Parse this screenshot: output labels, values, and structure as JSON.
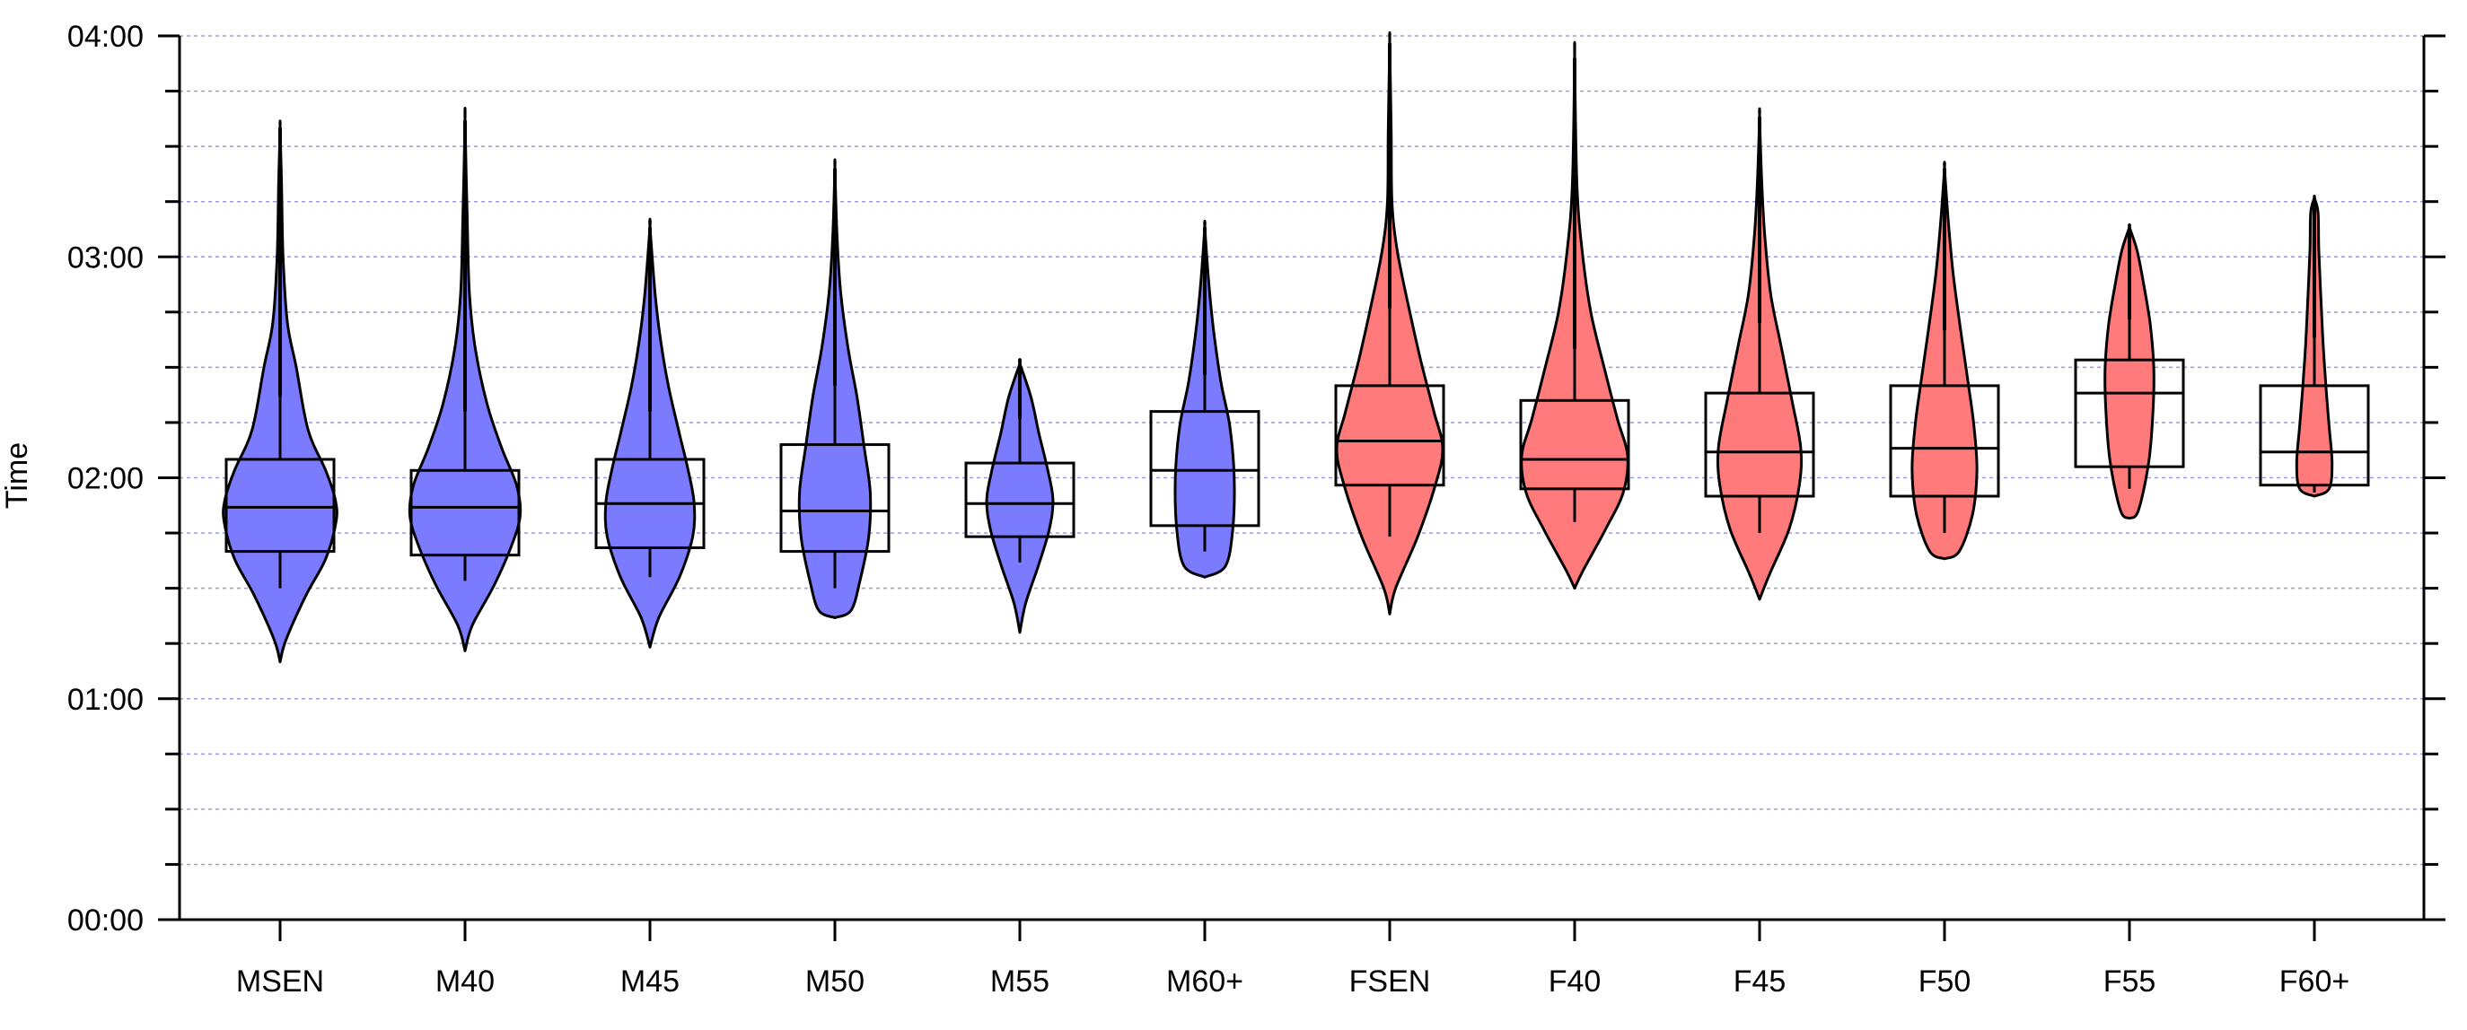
{
  "chart_data": {
    "type": "violin",
    "title": "",
    "xlabel": "",
    "ylabel": "Time",
    "y_unit": "minutes",
    "ylim": [
      0,
      240
    ],
    "y_ticks": [
      {
        "value": 0,
        "label": "00:00"
      },
      {
        "value": 60,
        "label": "01:00"
      },
      {
        "value": 120,
        "label": "02:00"
      },
      {
        "value": 180,
        "label": "03:00"
      },
      {
        "value": 240,
        "label": "04:00"
      }
    ],
    "y_minor_step": 15,
    "grid": true,
    "grid_color": "#9a9ae6",
    "colors": {
      "male": "#7b7bff",
      "female": "#ff7b7b",
      "stroke": "#000000"
    },
    "categories": [
      "MSEN",
      "M40",
      "M45",
      "M50",
      "M55",
      "M60+",
      "FSEN",
      "F40",
      "F45",
      "F50",
      "F55",
      "F60+"
    ],
    "groups": [
      {
        "category": "MSEN",
        "sex": "male",
        "min": 70,
        "max": 215,
        "q1": 100,
        "median": 112,
        "q3": 125,
        "whisker_low": 90,
        "whisker_high": 142,
        "density": [
          [
            70,
            0.0
          ],
          [
            76,
            0.08
          ],
          [
            88,
            0.35
          ],
          [
            98,
            0.62
          ],
          [
            108,
            0.76
          ],
          [
            114,
            0.75
          ],
          [
            122,
            0.62
          ],
          [
            133,
            0.38
          ],
          [
            150,
            0.22
          ],
          [
            162,
            0.1
          ],
          [
            180,
            0.04
          ],
          [
            200,
            0.02
          ],
          [
            215,
            0.0
          ]
        ]
      },
      {
        "category": "M40",
        "sex": "male",
        "min": 73,
        "max": 217,
        "q1": 99,
        "median": 112,
        "q3": 122,
        "whisker_low": 92,
        "whisker_high": 138,
        "density": [
          [
            73,
            0.0
          ],
          [
            80,
            0.1
          ],
          [
            91,
            0.4
          ],
          [
            102,
            0.64
          ],
          [
            110,
            0.75
          ],
          [
            118,
            0.7
          ],
          [
            128,
            0.5
          ],
          [
            140,
            0.3
          ],
          [
            155,
            0.14
          ],
          [
            170,
            0.06
          ],
          [
            190,
            0.03
          ],
          [
            217,
            0.0
          ]
        ]
      },
      {
        "category": "M45",
        "sex": "male",
        "min": 74,
        "max": 188,
        "q1": 101,
        "median": 113,
        "q3": 125,
        "whisker_low": 93,
        "whisker_high": 138,
        "density": [
          [
            74,
            0.0
          ],
          [
            82,
            0.12
          ],
          [
            93,
            0.4
          ],
          [
            104,
            0.58
          ],
          [
            113,
            0.6
          ],
          [
            122,
            0.52
          ],
          [
            132,
            0.4
          ],
          [
            145,
            0.25
          ],
          [
            158,
            0.14
          ],
          [
            170,
            0.07
          ],
          [
            188,
            0.0
          ]
        ]
      },
      {
        "category": "M50",
        "sex": "male",
        "min": 82,
        "max": 204,
        "q1": 100,
        "median": 111,
        "q3": 129,
        "whisker_low": 90,
        "whisker_high": 145,
        "density": [
          [
            82,
            0.0
          ],
          [
            84,
            0.22
          ],
          [
            92,
            0.34
          ],
          [
            104,
            0.46
          ],
          [
            116,
            0.48
          ],
          [
            128,
            0.4
          ],
          [
            142,
            0.3
          ],
          [
            155,
            0.18
          ],
          [
            170,
            0.08
          ],
          [
            185,
            0.03
          ],
          [
            204,
            0.0
          ]
        ]
      },
      {
        "category": "M55",
        "sex": "male",
        "min": 78,
        "max": 151,
        "q1": 104,
        "median": 113,
        "q3": 124,
        "whisker_low": 97,
        "whisker_high": 136,
        "density": [
          [
            78,
            0.0
          ],
          [
            86,
            0.08
          ],
          [
            96,
            0.25
          ],
          [
            106,
            0.4
          ],
          [
            114,
            0.45
          ],
          [
            122,
            0.38
          ],
          [
            132,
            0.26
          ],
          [
            142,
            0.15
          ],
          [
            151,
            0.0
          ]
        ]
      },
      {
        "category": "M60+",
        "sex": "male",
        "min": 93,
        "max": 188,
        "q1": 107,
        "median": 122,
        "q3": 138,
        "whisker_low": 100,
        "whisker_high": 148,
        "density": [
          [
            93,
            0.0
          ],
          [
            96,
            0.28
          ],
          [
            106,
            0.38
          ],
          [
            120,
            0.4
          ],
          [
            134,
            0.34
          ],
          [
            146,
            0.22
          ],
          [
            160,
            0.12
          ],
          [
            174,
            0.05
          ],
          [
            188,
            0.0
          ]
        ]
      },
      {
        "category": "FSEN",
        "sex": "female",
        "min": 83,
        "max": 238,
        "q1": 118,
        "median": 130,
        "q3": 145,
        "whisker_low": 104,
        "whisker_high": 166,
        "density": [
          [
            83,
            0.0
          ],
          [
            90,
            0.08
          ],
          [
            104,
            0.38
          ],
          [
            118,
            0.62
          ],
          [
            128,
            0.72
          ],
          [
            138,
            0.6
          ],
          [
            152,
            0.42
          ],
          [
            168,
            0.24
          ],
          [
            182,
            0.1
          ],
          [
            195,
            0.03
          ],
          [
            215,
            0.02
          ],
          [
            238,
            0.0
          ]
        ]
      },
      {
        "category": "F40",
        "sex": "female",
        "min": 90,
        "max": 234,
        "q1": 117,
        "median": 125,
        "q3": 141,
        "whisker_low": 108,
        "whisker_high": 155,
        "density": [
          [
            90,
            0.0
          ],
          [
            95,
            0.12
          ],
          [
            106,
            0.42
          ],
          [
            116,
            0.66
          ],
          [
            126,
            0.72
          ],
          [
            136,
            0.58
          ],
          [
            150,
            0.4
          ],
          [
            165,
            0.22
          ],
          [
            182,
            0.1
          ],
          [
            200,
            0.03
          ],
          [
            234,
            0.0
          ]
        ]
      },
      {
        "category": "F45",
        "sex": "female",
        "min": 87,
        "max": 218,
        "q1": 115,
        "median": 127,
        "q3": 143,
        "whisker_low": 105,
        "whisker_high": 162,
        "density": [
          [
            87,
            0.0
          ],
          [
            94,
            0.14
          ],
          [
            106,
            0.4
          ],
          [
            118,
            0.54
          ],
          [
            128,
            0.56
          ],
          [
            140,
            0.45
          ],
          [
            155,
            0.3
          ],
          [
            170,
            0.15
          ],
          [
            186,
            0.07
          ],
          [
            200,
            0.03
          ],
          [
            218,
            0.0
          ]
        ]
      },
      {
        "category": "F50",
        "sex": "female",
        "min": 98,
        "max": 204,
        "q1": 115,
        "median": 128,
        "q3": 145,
        "whisker_low": 105,
        "whisker_high": 160,
        "density": [
          [
            98,
            0.0
          ],
          [
            100,
            0.2
          ],
          [
            110,
            0.38
          ],
          [
            122,
            0.44
          ],
          [
            134,
            0.4
          ],
          [
            146,
            0.32
          ],
          [
            160,
            0.22
          ],
          [
            175,
            0.12
          ],
          [
            190,
            0.05
          ],
          [
            204,
            0.0
          ]
        ]
      },
      {
        "category": "F55",
        "sex": "female",
        "min": 109,
        "max": 188,
        "q1": 123,
        "median": 143,
        "q3": 152,
        "whisker_low": 117,
        "whisker_high": 163,
        "density": [
          [
            109,
            0.0
          ],
          [
            111,
            0.12
          ],
          [
            124,
            0.26
          ],
          [
            138,
            0.32
          ],
          [
            150,
            0.33
          ],
          [
            162,
            0.28
          ],
          [
            174,
            0.18
          ],
          [
            182,
            0.1
          ],
          [
            188,
            0.0
          ]
        ]
      },
      {
        "category": "F60+",
        "sex": "female",
        "min": 115,
        "max": 196,
        "q1": 118,
        "median": 127,
        "q3": 145,
        "whisker_low": 116,
        "whisker_high": 158,
        "density": [
          [
            115,
            0.0
          ],
          [
            117,
            0.2
          ],
          [
            124,
            0.24
          ],
          [
            134,
            0.2
          ],
          [
            144,
            0.16
          ],
          [
            156,
            0.12
          ],
          [
            168,
            0.09
          ],
          [
            182,
            0.06
          ],
          [
            192,
            0.05
          ],
          [
            196,
            0.0
          ]
        ]
      }
    ]
  }
}
